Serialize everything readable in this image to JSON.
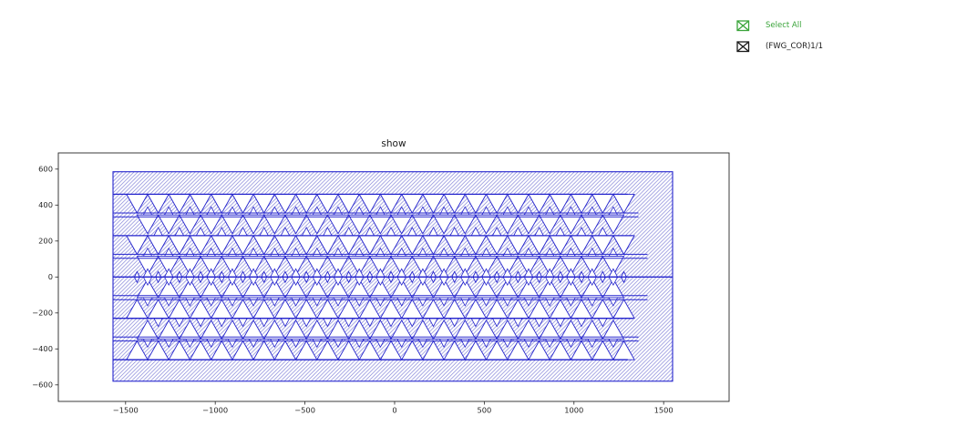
{
  "window": {
    "background": "#ffffff"
  },
  "legend": {
    "items": [
      {
        "label": "Select All",
        "color": "#3aa43a",
        "checked": true
      },
      {
        "label": "(FWG_COR)1/1",
        "color": "#1a1a1a",
        "checked": true
      }
    ]
  },
  "chart_data": {
    "type": "geometry",
    "title": "show",
    "xlabel": "",
    "ylabel": "",
    "xlim": [
      -1875,
      1865
    ],
    "ylim": [
      -692,
      690
    ],
    "xticks": [
      -1500,
      -1000,
      -500,
      0,
      500,
      1000,
      1500
    ],
    "yticks": [
      -600,
      -400,
      -200,
      0,
      200,
      400,
      600
    ],
    "grid": false,
    "legend_position": "outside-top-right",
    "accent_color": "#2323cd",
    "hatch_color": "#7b7bd6",
    "frame_color": "#262626",
    "tick_label_color": "#262626",
    "outer_rect": {
      "x0": -1570,
      "x1": 1550,
      "y0": -580,
      "y1": 585
    },
    "pattern": {
      "row_boundaries": [
        460,
        345,
        230,
        115,
        0,
        -115,
        -230,
        -345,
        -460
      ],
      "row_offsets": [
        0,
        0.5,
        0,
        0.5,
        0.5,
        0,
        0.5,
        0
      ],
      "double_line_boundaries": [
        345,
        115,
        -115,
        -345
      ],
      "double_line_gap": 11,
      "line_right_ends": [
        1300,
        1360,
        1330,
        1410,
        1550,
        1410,
        1330,
        1360,
        1300
      ],
      "triangle_pitch": 118,
      "triangle_height": 104,
      "small_triangle_half_width": 24,
      "small_triangle_height": 45,
      "diamond_half_width": 15,
      "diamond_half_height": 30,
      "row_x_start": -1495,
      "row_x_end": 1360
    }
  }
}
